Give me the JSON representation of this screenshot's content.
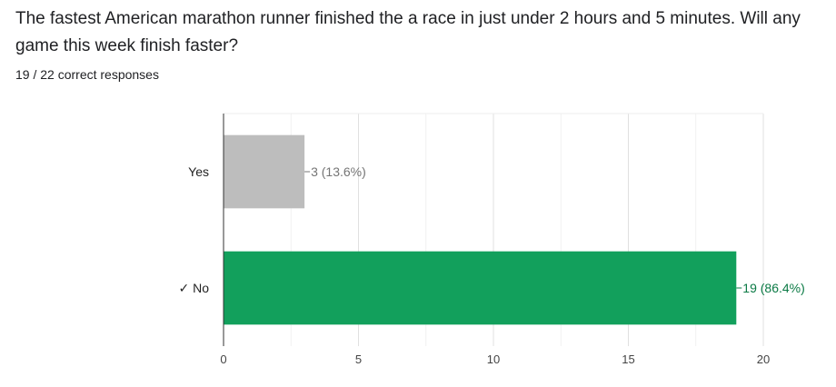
{
  "question": {
    "title": "The fastest American marathon runner finished the a race in just under 2 hours and 5 minutes. Will any game this week finish faster?",
    "summary": "19 / 22 correct responses"
  },
  "chart_data": {
    "type": "bar",
    "orientation": "horizontal",
    "categories": [
      "Yes",
      "✓ No"
    ],
    "values": [
      3,
      19
    ],
    "data_labels": [
      "3 (13.6%)",
      "19 (86.4%)"
    ],
    "colors": [
      "#bdbdbd",
      "#12a05c"
    ],
    "label_colors": [
      "#757575",
      "#0b7a45"
    ],
    "xlim": [
      0,
      20
    ],
    "xticks": [
      0,
      5,
      10,
      15,
      20
    ],
    "grid": true,
    "legend": "none"
  }
}
